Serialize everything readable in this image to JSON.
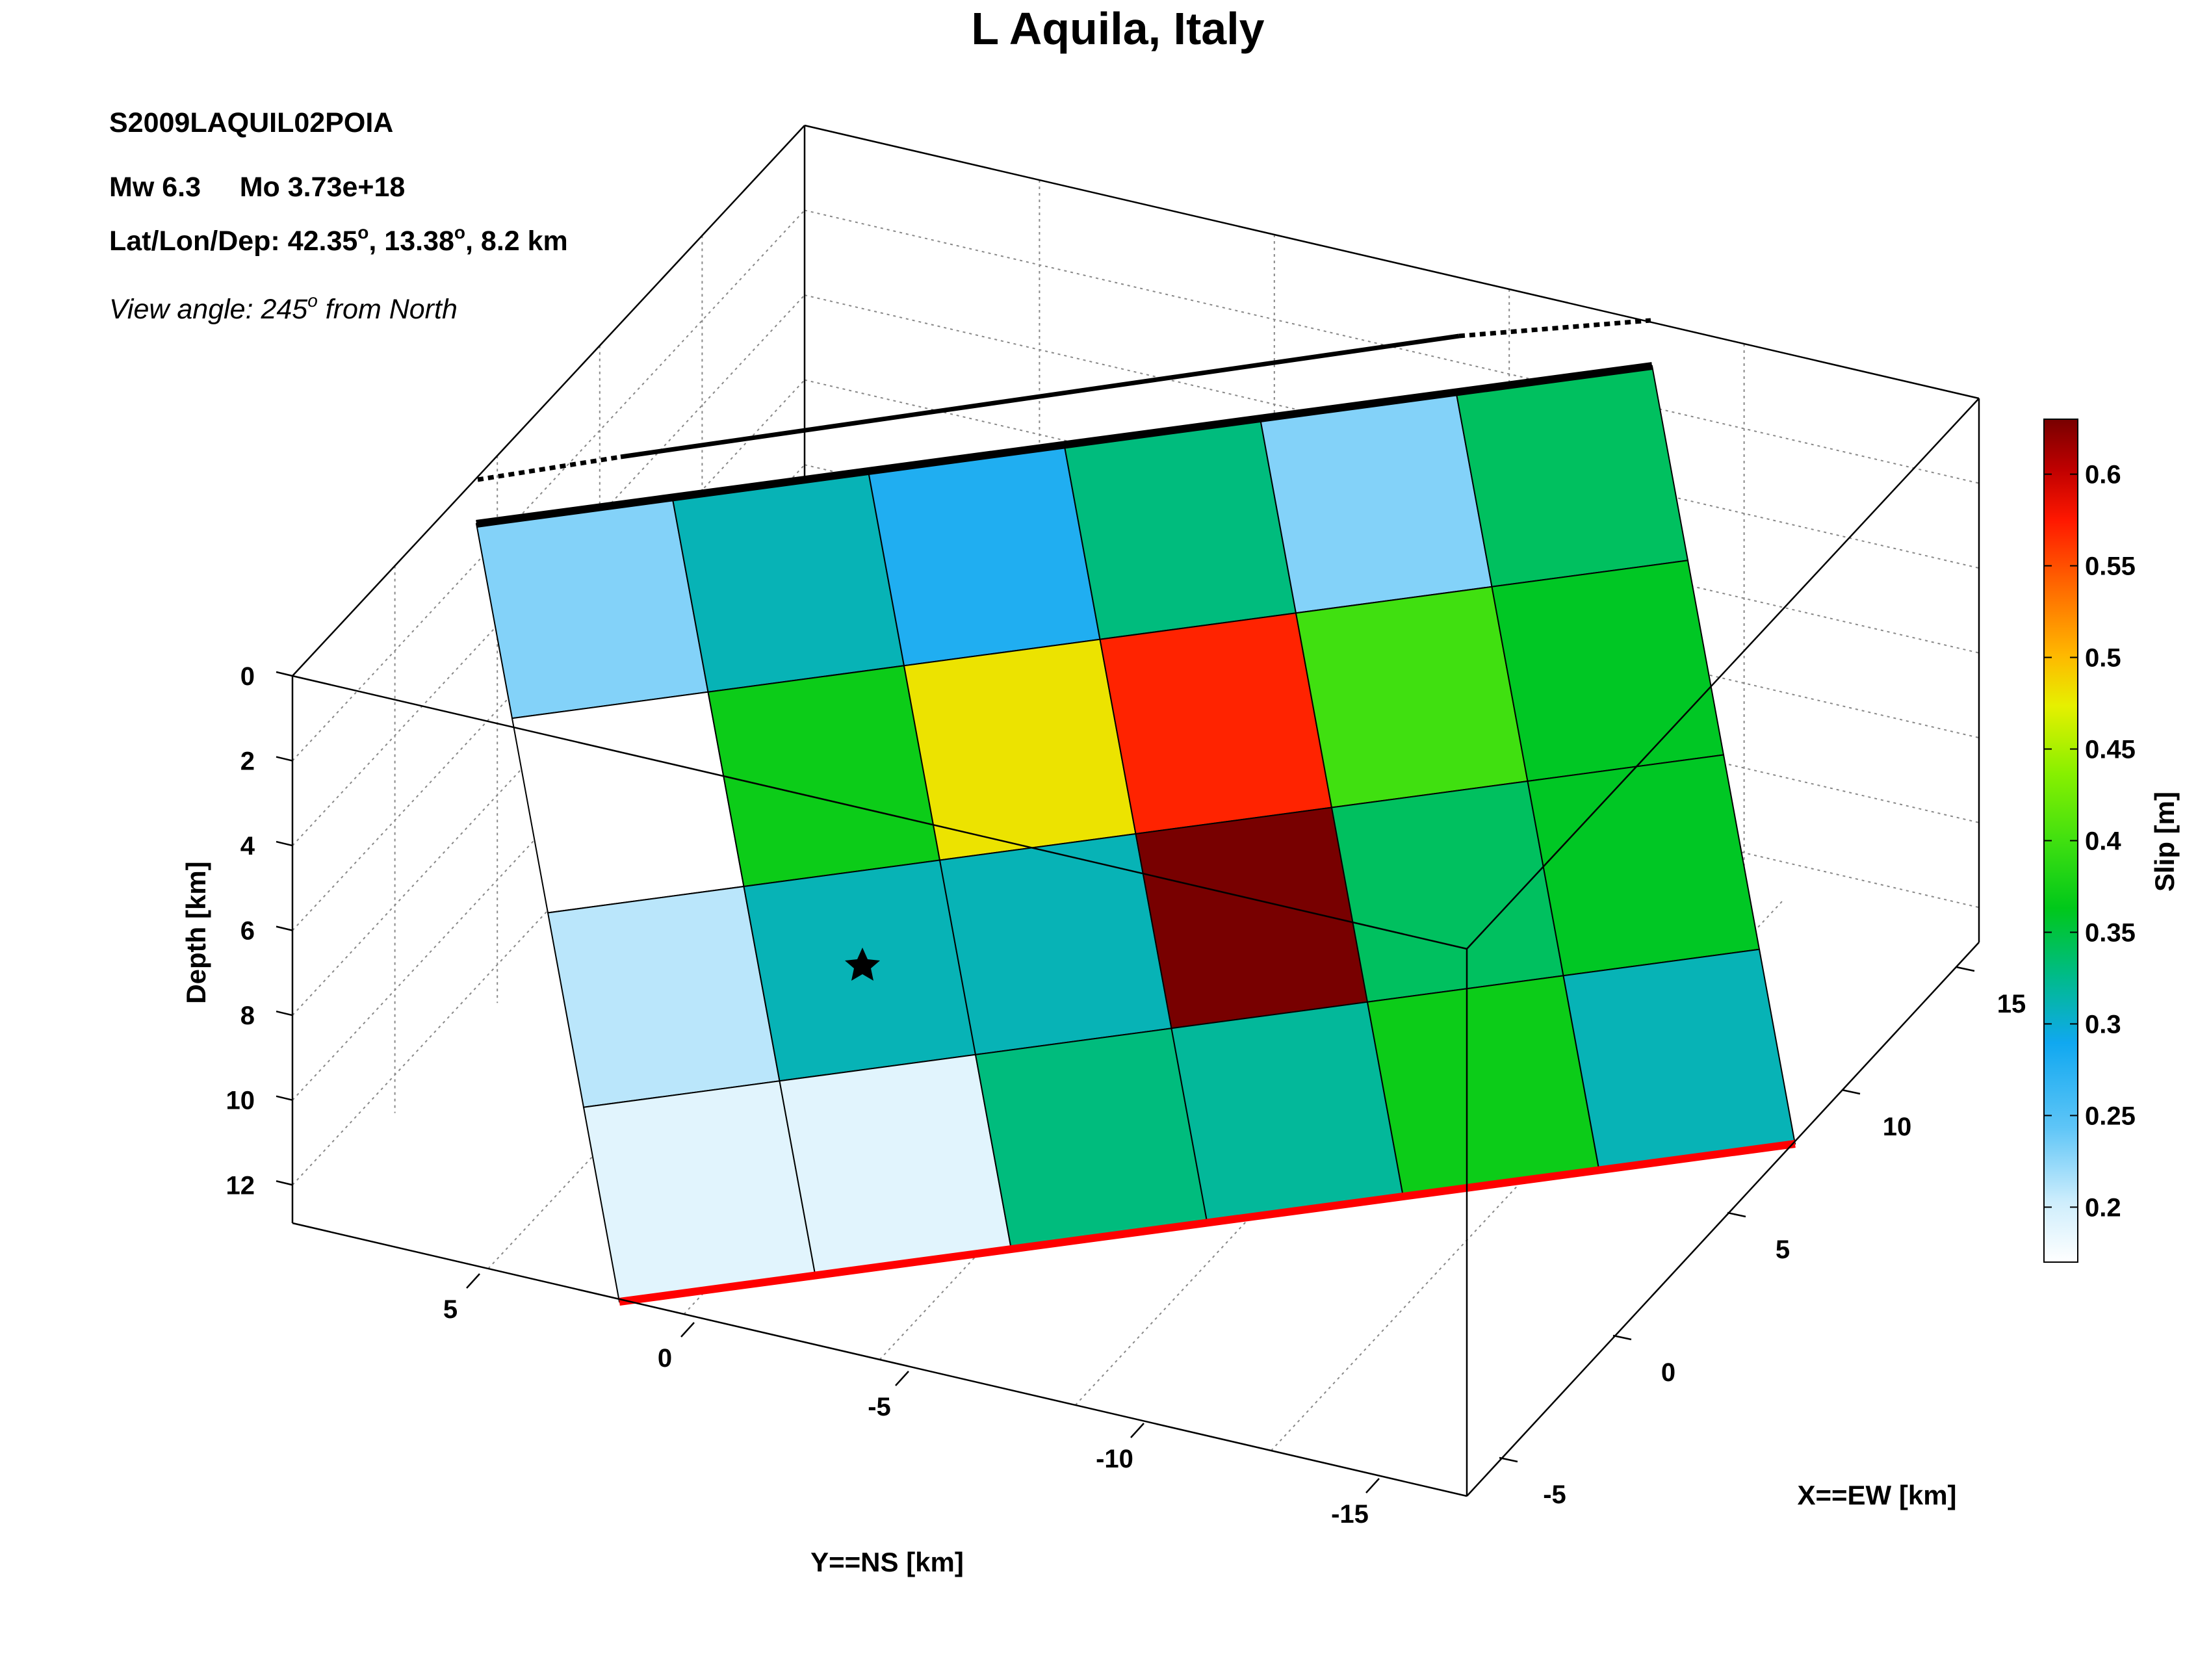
{
  "chart_data": {
    "type": "heatmap",
    "title": "L Aquila, Italy",
    "event_id": "S2009LAQUIL02POIA",
    "magnitude_line": "Mw 6.3     Mo 3.73e+18",
    "location_line": {
      "prefix": "Lat/Lon/Dep: 42.35",
      "degree": "o",
      "mid": ", 13.38",
      "suffix": ", 8.2 km"
    },
    "view_line": {
      "prefix": "View angle: 245",
      "degree": "o",
      "suffix": " from North"
    },
    "xlabel": "X==EW [km]",
    "ylabel": "Y==NS [km]",
    "zlabel": "Depth [km]",
    "colorbar_label": "Slip [m]",
    "x_ticks": [
      "15",
      "10",
      "5",
      "0",
      "-5"
    ],
    "y_ticks": [
      "5",
      "0",
      "-5",
      "-10",
      "-15"
    ],
    "z_ticks": [
      "0",
      "2",
      "4",
      "6",
      "8",
      "10",
      "12"
    ],
    "colorbar_ticks": [
      "0.6",
      "0.55",
      "0.5",
      "0.45",
      "0.4",
      "0.35",
      "0.3",
      "0.25",
      "0.2"
    ],
    "colorbar_range": [
      0.17,
      0.63
    ],
    "slip_grid": [
      [
        0.23,
        0.31,
        0.28,
        0.33,
        0.23,
        0.34
      ],
      [
        0.17,
        0.37,
        0.48,
        0.57,
        0.4,
        0.36
      ],
      [
        0.21,
        0.31,
        0.31,
        0.63,
        0.34,
        0.36
      ],
      [
        0.19,
        0.19,
        0.33,
        0.32,
        0.37,
        0.31
      ]
    ],
    "colors": {
      "top_edge": "#000000",
      "bottom_edge": "#ff0000",
      "hypocenter": "#000000"
    }
  }
}
